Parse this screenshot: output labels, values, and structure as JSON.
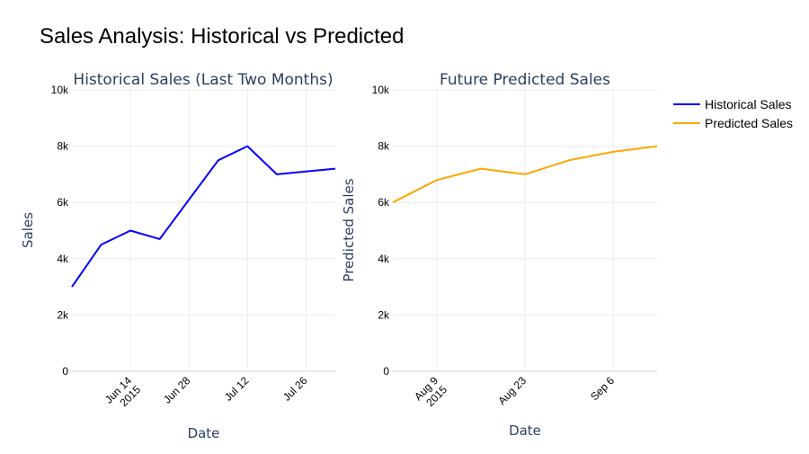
{
  "title": "Sales Analysis: Historical vs Predicted",
  "colors": {
    "historical": "#0000ff",
    "predicted": "#ffa500",
    "grid": "#ebebeb",
    "text": "#2a3f5f"
  },
  "legend": {
    "placement": "top-right",
    "items": [
      "Historical Sales",
      "Predicted Sales"
    ]
  },
  "chart_data": [
    {
      "type": "line",
      "title": "Historical Sales (Last Two Months)",
      "xlabel": "Date",
      "ylabel": "Sales",
      "ylim": [
        0,
        10000
      ],
      "yticks": [
        0,
        2000,
        4000,
        6000,
        8000,
        10000
      ],
      "ytick_labels": [
        "0",
        "2k",
        "4k",
        "6k",
        "8k",
        "10k"
      ],
      "xlim": [
        "2015-05-31",
        "2015-08-02"
      ],
      "xticks": [
        "2015-06-14",
        "2015-06-28",
        "2015-07-12",
        "2015-07-26"
      ],
      "xtick_labels": [
        [
          "Jun 14",
          "2015"
        ],
        [
          "Jun 28"
        ],
        [
          "Jul 12"
        ],
        [
          "Jul 26"
        ]
      ],
      "grid": true,
      "series": [
        {
          "name": "Historical Sales",
          "color": "#0000ff",
          "x": [
            "2015-05-31",
            "2015-06-07",
            "2015-06-14",
            "2015-06-21",
            "2015-06-28",
            "2015-07-05",
            "2015-07-12",
            "2015-07-19",
            "2015-07-26",
            "2015-08-02"
          ],
          "y": [
            3000,
            4500,
            5000,
            4700,
            6100,
            7500,
            8000,
            7000,
            7100,
            7200
          ]
        }
      ]
    },
    {
      "type": "line",
      "title": "Future Predicted Sales",
      "xlabel": "Date",
      "ylabel": "Predicted Sales",
      "ylim": [
        0,
        10000
      ],
      "yticks": [
        0,
        2000,
        4000,
        6000,
        8000,
        10000
      ],
      "ytick_labels": [
        "0",
        "2k",
        "4k",
        "6k",
        "8k",
        "10k"
      ],
      "xlim": [
        "2015-08-02",
        "2015-09-13"
      ],
      "xticks": [
        "2015-08-09",
        "2015-08-23",
        "2015-09-06"
      ],
      "xtick_labels": [
        [
          "Aug 9",
          "2015"
        ],
        [
          "Aug 23"
        ],
        [
          "Sep 6"
        ]
      ],
      "grid": true,
      "series": [
        {
          "name": "Predicted Sales",
          "color": "#ffa500",
          "x": [
            "2015-08-02",
            "2015-08-09",
            "2015-08-16",
            "2015-08-23",
            "2015-08-30",
            "2015-09-06",
            "2015-09-13"
          ],
          "y": [
            6000,
            6800,
            7200,
            7000,
            7500,
            7800,
            8000
          ]
        }
      ]
    }
  ]
}
